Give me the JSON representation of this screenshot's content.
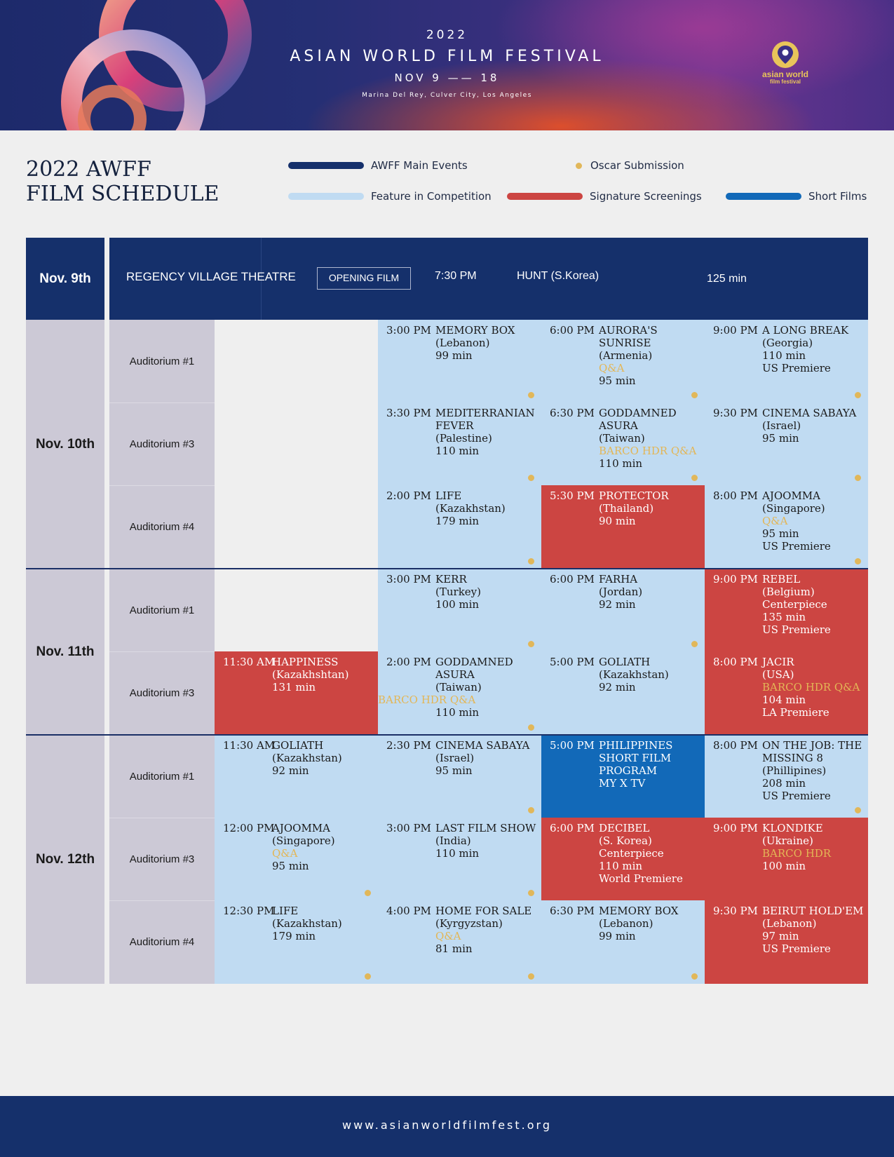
{
  "header": {
    "year": "2022",
    "title": "ASIAN WORLD FILM FESTIVAL",
    "dates": "NOV 9 —— 18",
    "venue": "Marina Del Rey, Culver City, Los Angeles",
    "logo_line1": "asian world",
    "logo_line2": "film festival"
  },
  "doc_title": {
    "line1": "2022 AWFF",
    "line2": "FILM SCHEDULE"
  },
  "legend": {
    "main_events": "AWFF Main Events",
    "oscar": "Oscar Submission",
    "competition": "Feature in Competition",
    "signature": "Signature Screenings",
    "shorts": "Short Films"
  },
  "colors": {
    "main_events": "#15306b",
    "competition": "#c0dbf2",
    "signature": "#cc4542",
    "shorts": "#1269b8",
    "oscar": "#e1b75a"
  },
  "nov9": {
    "date": "Nov. 9th",
    "venue": "REGENCY VILLAGE THEATRE",
    "tag": "OPENING FILM",
    "time": "7:30 PM",
    "film": "HUNT  (S.Korea)",
    "runtime": "125 min"
  },
  "days": {
    "nov10": "Nov. 10th",
    "nov11": "Nov. 11th",
    "nov12": "Nov. 12th"
  },
  "auditoriums": {
    "a1": "Auditorium #1",
    "a3": "Auditorium #3",
    "a4": "Auditorium #4"
  },
  "screenings": {
    "n10a1s2": {
      "time": "3:00 PM",
      "title": "MEMORY BOX",
      "country": "(Lebanon)",
      "runtime": "99 min"
    },
    "n10a1s3": {
      "time": "6:00 PM",
      "title": "AURORA'S SUNRISE",
      "country": "(Armenia)",
      "note": "Q&A",
      "runtime": "95 min"
    },
    "n10a1s4": {
      "time": "9:00 PM",
      "title": "A LONG BREAK",
      "country": "(Georgia)",
      "runtime": "110 min",
      "premiere": "US Premiere"
    },
    "n10a3s2": {
      "time": "3:30 PM",
      "title": "MEDITERRANIAN FEVER",
      "country": "(Palestine)",
      "runtime": "110 min"
    },
    "n10a3s3": {
      "time": "6:30 PM",
      "title": "GODDAMNED ASURA",
      "country": "(Taiwan)",
      "note": "BARCO HDR Q&A",
      "runtime": "110 min"
    },
    "n10a3s4": {
      "time": "9:30 PM",
      "title": "CINEMA SABAYA",
      "country": "(Israel)",
      "runtime": "95 min"
    },
    "n10a4s2": {
      "time": "2:00 PM",
      "title": "LIFE",
      "country": "(Kazakhstan)",
      "runtime": "179 min"
    },
    "n10a4s3": {
      "time": "5:30 PM",
      "title": "PROTECTOR",
      "country": "(Thailand)",
      "runtime": "90 min"
    },
    "n10a4s4": {
      "time": "8:00 PM",
      "title": "AJOOMMA",
      "country": "(Singapore)",
      "note": "Q&A",
      "runtime": "95 min",
      "premiere": "US Premiere"
    },
    "n11a1s2": {
      "time": "3:00 PM",
      "title": "KERR",
      "country": "(Turkey)",
      "runtime": "100 min"
    },
    "n11a1s3": {
      "time": "6:00 PM",
      "title": "FARHA",
      "country": "(Jordan)",
      "runtime": "92 min"
    },
    "n11a1s4": {
      "time": "9:00 PM",
      "title": "REBEL",
      "country": "(Belgium)",
      "extra": "Centerpiece",
      "runtime": "135 min",
      "premiere": "US Premiere"
    },
    "n11a3s1": {
      "time": "11:30 AM",
      "title": "HAPPINESS",
      "country": "(Kazakhshtan)",
      "runtime": "131 min"
    },
    "n11a3s2": {
      "time": "2:00 PM",
      "title": "GODDAMNED ASURA",
      "country": "(Taiwan)",
      "note": "BARCO HDR Q&A",
      "runtime": "110 min"
    },
    "n11a3s3": {
      "time": "5:00 PM",
      "title": "GOLIATH",
      "country": "(Kazakhstan)",
      "runtime": "92 min"
    },
    "n11a3s4": {
      "time": "8:00 PM",
      "title": "JACIR",
      "country": "(USA)",
      "note": "BARCO HDR Q&A",
      "runtime": "104 min",
      "premiere": "LA Premiere"
    },
    "n12a1s1": {
      "time": "11:30 AM",
      "title": "GOLIATH",
      "country": "(Kazakhstan)",
      "runtime": "92 min"
    },
    "n12a1s2": {
      "time": "2:30 PM",
      "title": "CINEMA SABAYA",
      "country": "(Israel)",
      "runtime": "95 min"
    },
    "n12a1s3": {
      "time": "5:00 PM",
      "title": "PHILIPPINES SHORT FILM PROGRAM",
      "extra": "MY X TV"
    },
    "n12a1s4": {
      "time": "8:00 PM",
      "title": "ON THE JOB: THE MISSING 8",
      "country": "(Phillipines)",
      "runtime": "208 min",
      "premiere": "US Premiere"
    },
    "n12a3s1": {
      "time": "12:00 PM",
      "title": "AJOOMMA",
      "country": "(Singapore)",
      "note": "Q&A",
      "runtime": "95 min"
    },
    "n12a3s2": {
      "time": "3:00 PM",
      "title": "LAST FILM SHOW",
      "country": "(India)",
      "runtime": "110 min"
    },
    "n12a3s3": {
      "time": "6:00 PM",
      "title": "DECIBEL",
      "country": "(S. Korea)",
      "extra": "Centerpiece",
      "runtime": "110 min",
      "premiere": "World Premiere"
    },
    "n12a3s4": {
      "time": "9:00 PM",
      "title": "KLONDIKE",
      "country": "(Ukraine)",
      "note": "BARCO HDR",
      "runtime": "100 min"
    },
    "n12a4s1": {
      "time": "12:30 PM",
      "title": "LIFE",
      "country": "(Kazakhstan)",
      "runtime": "179 min"
    },
    "n12a4s2": {
      "time": "4:00 PM",
      "title": "HOME FOR SALE",
      "country": "(Kyrgyzstan)",
      "note": "Q&A",
      "runtime": "81 min"
    },
    "n12a4s3": {
      "time": "6:30 PM",
      "title": "MEMORY BOX",
      "country": "(Lebanon)",
      "runtime": "99 min"
    },
    "n12a4s4": {
      "time": "9:30 PM",
      "title": "BEIRUT HOLD'EM",
      "country": "(Lebanon)",
      "runtime": "97 min",
      "premiere": "US Premiere"
    }
  },
  "footer": {
    "url": "www.asianworldfilmfest.org"
  }
}
